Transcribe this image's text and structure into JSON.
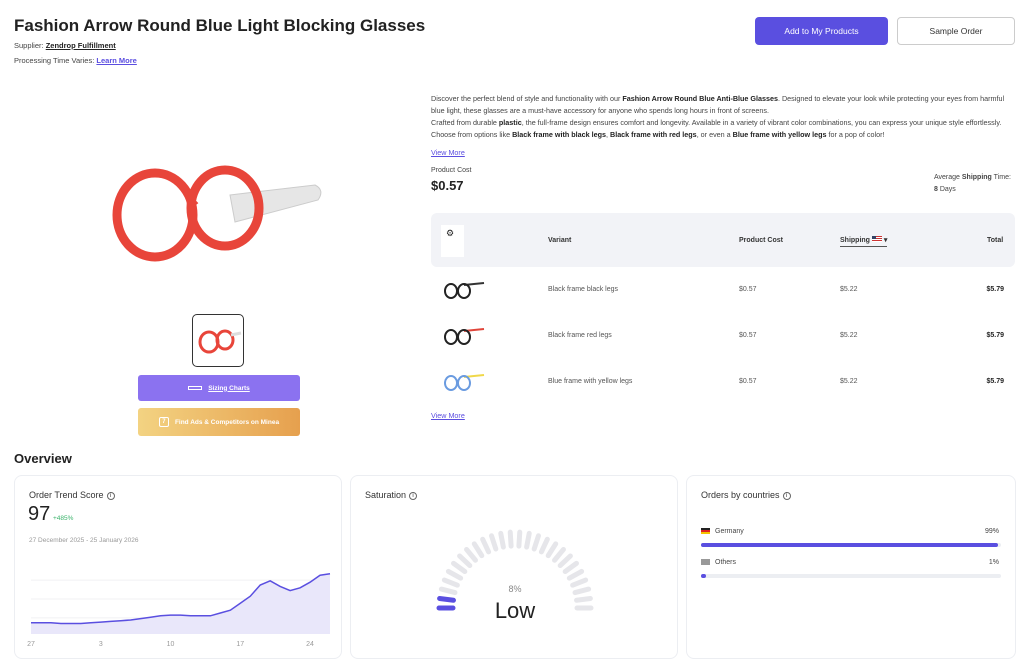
{
  "header": {
    "title": "Fashion Arrow Round Blue Light Blocking Glasses",
    "supplier_label": "Supplier:",
    "supplier": "Zendrop Fulfillment",
    "processing_label": "Processing Time Varies:",
    "learn_more": "Learn More",
    "add_button": "Add to My Products",
    "sample_button": "Sample Order"
  },
  "gallery": {
    "sizing": "Sizing Charts",
    "ads": "Find Ads & Competitors on Minea"
  },
  "description": {
    "p1a": "Discover the perfect blend of style and functionality with our ",
    "p1b": "Fashion Arrow Round Blue Anti-Blue Glasses",
    "p1c": ". Designed to elevate your look while protecting your eyes from harmful blue light, these glasses are a must-have accessory for anyone who spends long hours in front of screens.",
    "p2a": "Crafted from durable ",
    "p2b": "plastic",
    "p2c": ", the full-frame design ensures comfort and longevity. Available in a variety of vibrant color combinations, you can express your unique style effortlessly. Choose from options like ",
    "p2d": "Black frame with black legs",
    "p2e": ", ",
    "p2f": "Black frame with red legs",
    "p2g": ", or even a ",
    "p2h": "Blue frame with yellow legs",
    "p2i": " for a pop of color!",
    "view_more": "View More"
  },
  "cost": {
    "label": "Product Cost",
    "value": "$0.57",
    "ship_a": "Average ",
    "ship_b": "Shipping",
    "ship_c": " Time:",
    "days_num": "8",
    "days": " Days"
  },
  "table": {
    "headers": [
      "Variant",
      "Product Cost",
      "Shipping",
      "Total"
    ],
    "rows": [
      {
        "variant": "Black frame black legs",
        "cost": "$0.57",
        "shipping": "$5.22",
        "total": "$5.79",
        "frame": "#222",
        "legs": "#333"
      },
      {
        "variant": "Black frame red legs",
        "cost": "$0.57",
        "shipping": "$5.22",
        "total": "$5.79",
        "frame": "#222",
        "legs": "#e0453a"
      },
      {
        "variant": "Blue frame with yellow legs",
        "cost": "$0.57",
        "shipping": "$5.22",
        "total": "$5.79",
        "frame": "#6a9be0",
        "legs": "#f0d84a"
      }
    ],
    "view_more": "View More"
  },
  "overview": {
    "title": "Overview",
    "trend": {
      "title": "Order Trend Score",
      "score": "97",
      "change": "+485%",
      "range": "27 December 2025 - 25 January 2026"
    },
    "saturation": {
      "title": "Saturation",
      "percent": "8%",
      "level": "Low",
      "value": 8
    },
    "countries": {
      "title": "Orders by countries",
      "items": [
        {
          "name": "Germany",
          "pct": "99%",
          "value": 99
        },
        {
          "name": "Others",
          "pct": "1%",
          "value": 1
        }
      ]
    }
  },
  "chart_data": {
    "type": "area",
    "title": "Order Trend Score",
    "x_ticks": [
      "27",
      "3",
      "10",
      "17",
      "24"
    ],
    "values": [
      8,
      8,
      8,
      7.5,
      7.5,
      7.5,
      8,
      8.5,
      9,
      9.5,
      10,
      11,
      12,
      13,
      13.5,
      13.5,
      13,
      13,
      13,
      15,
      17,
      22,
      27,
      35,
      38,
      34,
      31,
      33,
      37,
      42,
      43
    ],
    "ylim": [
      0,
      50
    ],
    "color": "#5a4fe0"
  },
  "colors": {
    "accent": "#5a4fe0",
    "positive": "#3bb36b"
  }
}
